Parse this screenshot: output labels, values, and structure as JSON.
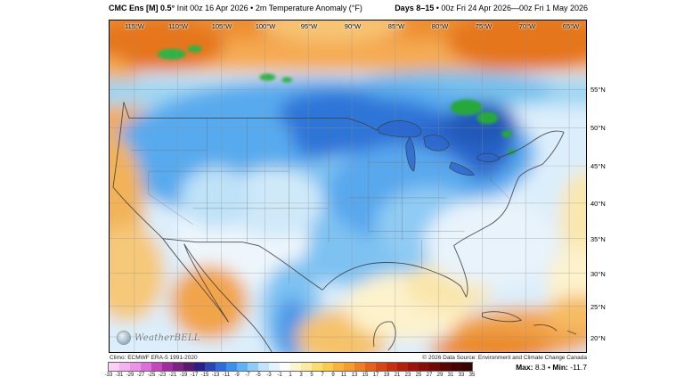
{
  "header": {
    "model_bold": "CMC Ens [M] 0.5°",
    "model_rest": "Init 00z 16 Apr 2026 • 2m Temperature Anomaly (°F)",
    "range_bold": "Days 8–15",
    "range_rest": "• 00z Fri 24 Apr 2026—00z Fri 1 May 2026"
  },
  "map": {
    "lon_labels": [
      "115°W",
      "110°W",
      "105°W",
      "100°W",
      "95°W",
      "90°W",
      "85°W",
      "80°W",
      "75°W",
      "70°W",
      "65°W"
    ],
    "lat_labels": [
      "55°N",
      "50°N",
      "45°N",
      "40°N",
      "35°N",
      "30°N",
      "25°N",
      "20°N"
    ],
    "watermark": "WeatherBELL",
    "copyright": "© 2026 Data Source: Environment and Climate Change Canada"
  },
  "legend": {
    "ticks": [
      -33,
      -31,
      -29,
      -27,
      -25,
      -23,
      -21,
      -19,
      -17,
      -15,
      -13,
      -11,
      -9,
      -7,
      -5,
      -3,
      -1,
      1,
      3,
      5,
      7,
      9,
      11,
      13,
      15,
      17,
      19,
      21,
      23,
      25,
      27,
      29,
      31,
      33,
      35
    ],
    "colors": [
      "#f9d0f6",
      "#f4b2f0",
      "#eb93e6",
      "#dd6fd8",
      "#c447be",
      "#a32ba2",
      "#7f2180",
      "#58196e",
      "#2a1f86",
      "#2b44b0",
      "#2e6ad8",
      "#3b90ec",
      "#60b2f4",
      "#90ccf8",
      "#c2e3fb",
      "#e4f2fd",
      "#ffffff",
      "#fdf5d0",
      "#fcea9e",
      "#fbdc70",
      "#facb4c",
      "#f8b43a",
      "#f49c2d",
      "#ee7f24",
      "#e4621c",
      "#d74715",
      "#c73011",
      "#b21f0d",
      "#9b130a",
      "#840e08",
      "#6e0906",
      "#590605",
      "#470404",
      "#380303"
    ],
    "climo": "Climo: ECMWF ERA-5 1991-2020",
    "max_label": "Max:",
    "max_value": "8.3",
    "min_label": "Min:",
    "min_value": "-11.7",
    "separator": "•"
  },
  "field_colors": {
    "warm_canada": "#ee8f33",
    "cold_core": "#2a66cc",
    "near_zero": "#ffffff",
    "extreme_cold_green": "#2eb347"
  }
}
